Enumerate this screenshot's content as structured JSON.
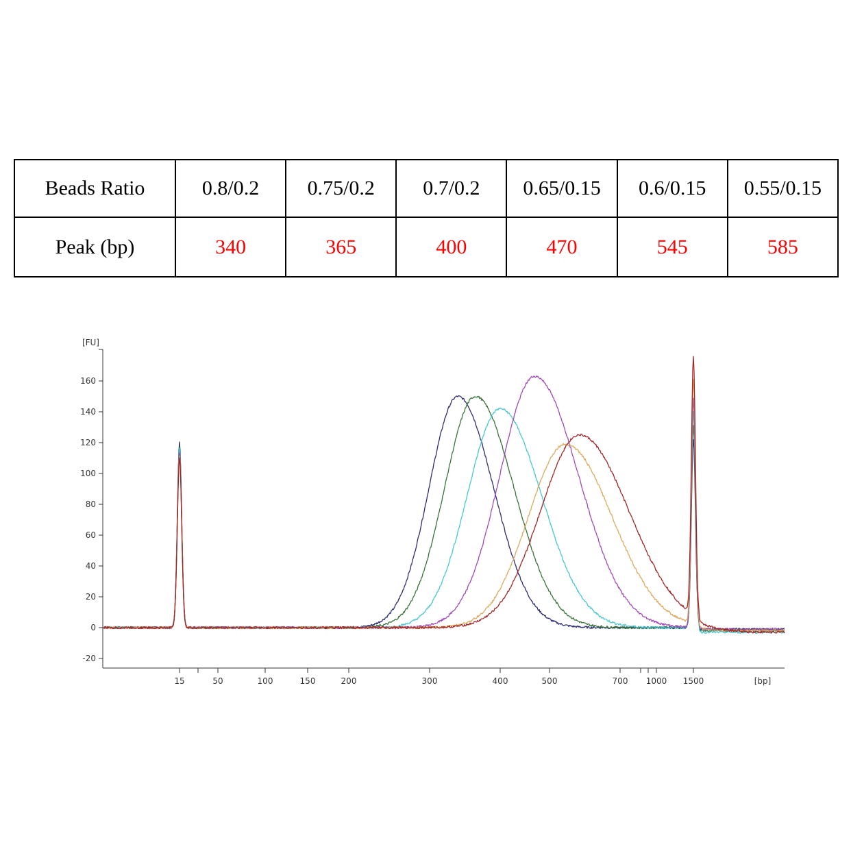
{
  "table": {
    "header_label": "Beads Ratio",
    "row_label": "Peak (bp)",
    "ratios": [
      "0.8/0.2",
      "0.75/0.2",
      "0.7/0.2",
      "0.65/0.15",
      "0.6/0.15",
      "0.55/0.15"
    ],
    "peaks": [
      "340",
      "365",
      "400",
      "470",
      "545",
      "585"
    ],
    "peak_color": "#ff0000"
  },
  "chart_data": {
    "type": "line",
    "ylabel": "[FU]",
    "xlabel": "[bp]",
    "ylim": [
      -25,
      175
    ],
    "y_ticks": [
      -20,
      0,
      20,
      40,
      60,
      80,
      100,
      120,
      140,
      160
    ],
    "x_ticks": [
      "15",
      "50",
      "100",
      "150",
      "200",
      "300",
      "400",
      "500",
      "700",
      "1000",
      "1500"
    ],
    "x_minor_ticks": [
      30,
      800,
      900
    ],
    "markers": [
      {
        "name": "lower",
        "x": 15,
        "height": 120
      },
      {
        "name": "upper",
        "x": 1500,
        "height": 167
      }
    ],
    "series": [
      {
        "color": "#22226e",
        "peak_x": 340,
        "peak_y": 150
      },
      {
        "color": "#2e6b2e",
        "peak_x": 365,
        "peak_y": 150
      },
      {
        "color": "#3ec3cf",
        "peak_x": 400,
        "peak_y": 142
      },
      {
        "color": "#9b3fb5",
        "peak_x": 470,
        "peak_y": 163
      },
      {
        "color": "#d9a555",
        "peak_x": 545,
        "peak_y": 119
      },
      {
        "color": "#9e1b1b",
        "peak_x": 585,
        "peak_y": 125
      }
    ]
  }
}
